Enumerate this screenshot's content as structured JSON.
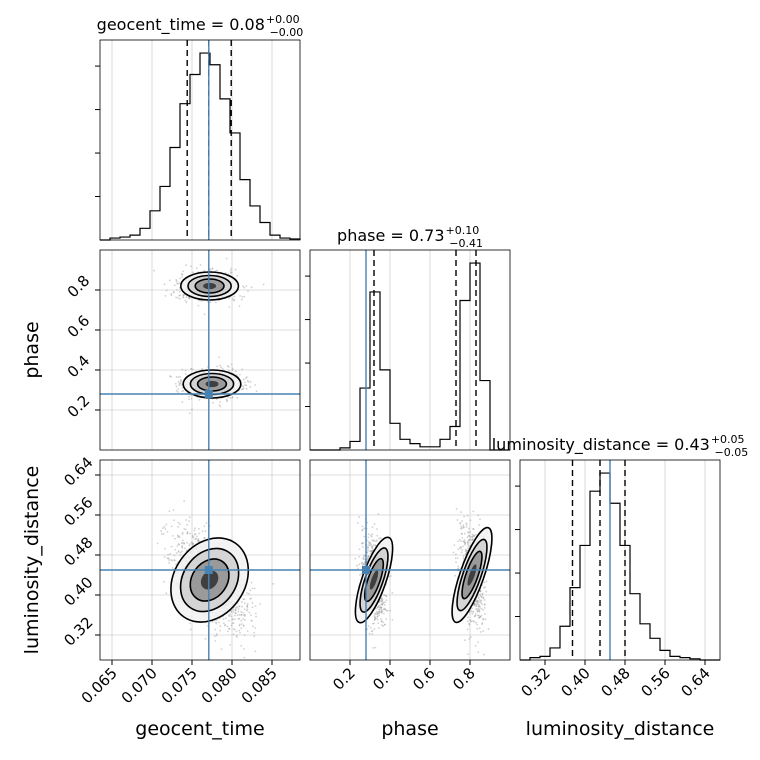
{
  "chart_data": {
    "type": "corner",
    "parameters": [
      "geocent_time",
      "phase",
      "luminosity_distance"
    ],
    "axis_labels": {
      "geocent_time": "geocent_time",
      "phase": "phase",
      "luminosity_distance": "luminosity_distance"
    },
    "titles": [
      {
        "param": "geocent_time",
        "text": "geocent_time = 0.08",
        "upper": "+0.00",
        "lower": "−0.00"
      },
      {
        "param": "phase",
        "text": "phase = 0.73",
        "upper": "+0.10",
        "lower": "−0.41"
      },
      {
        "param": "luminosity_distance",
        "text": "luminosity_distance = 0.43",
        "upper": "+0.05",
        "lower": "−0.05"
      }
    ],
    "ranges": {
      "geocent_time": [
        0.0635,
        0.0885
      ],
      "phase": [
        0.0,
        1.0
      ],
      "luminosity_distance": [
        0.27,
        0.67
      ]
    },
    "ticks": {
      "geocent_time": {
        "values": [
          0.065,
          0.07,
          0.075,
          0.08,
          0.085
        ],
        "labels": [
          "0.065",
          "0.070",
          "0.075",
          "0.080",
          "0.085"
        ]
      },
      "phase": {
        "values": [
          0.2,
          0.4,
          0.6,
          0.8
        ],
        "labels": [
          "0.2",
          "0.4",
          "0.6",
          "0.8"
        ]
      },
      "luminosity_distance": {
        "values": [
          0.32,
          0.4,
          0.48,
          0.56,
          0.64
        ],
        "labels": [
          "0.32",
          "0.40",
          "0.48",
          "0.56",
          "0.64"
        ]
      }
    },
    "truths": {
      "geocent_time": 0.0771,
      "phase": 0.28,
      "luminosity_distance": 0.45
    },
    "quantiles": {
      "geocent_time": [
        0.0744,
        0.0771,
        0.0799
      ],
      "phase": [
        0.32,
        0.73,
        0.83
      ],
      "luminosity_distance": [
        0.375,
        0.43,
        0.48
      ]
    },
    "histograms": {
      "geocent_time": {
        "edges": [
          0.0635,
          0.06475,
          0.066,
          0.06725,
          0.0685,
          0.06975,
          0.071,
          0.07225,
          0.0735,
          0.07475,
          0.076,
          0.07725,
          0.0785,
          0.07975,
          0.081,
          0.08225,
          0.0835,
          0.08475,
          0.086,
          0.08725,
          0.0885
        ],
        "counts": [
          0,
          2,
          3,
          5,
          12,
          30,
          55,
          95,
          140,
          170,
          192,
          180,
          145,
          110,
          62,
          35,
          18,
          5,
          2,
          1
        ]
      },
      "phase": {
        "edges": [
          0.0,
          0.05,
          0.1,
          0.15,
          0.2,
          0.25,
          0.3,
          0.35,
          0.4,
          0.45,
          0.5,
          0.55,
          0.6,
          0.65,
          0.7,
          0.75,
          0.8,
          0.85,
          0.9,
          0.95,
          1.0
        ],
        "counts": [
          0,
          0,
          0,
          2,
          8,
          58,
          148,
          75,
          25,
          10,
          6,
          3,
          3,
          10,
          22,
          140,
          175,
          65,
          0,
          0
        ]
      },
      "luminosity_distance": {
        "edges": [
          0.27,
          0.29,
          0.31,
          0.33,
          0.35,
          0.37,
          0.39,
          0.41,
          0.43,
          0.45,
          0.47,
          0.49,
          0.51,
          0.53,
          0.55,
          0.57,
          0.59,
          0.61,
          0.63,
          0.65,
          0.67
        ],
        "counts": [
          0,
          2,
          3,
          10,
          28,
          60,
          95,
          140,
          155,
          130,
          95,
          55,
          30,
          18,
          8,
          3,
          2,
          1,
          0,
          0
        ]
      }
    },
    "density_modes": [
      {
        "x": "geocent_time",
        "y": "phase",
        "centers": [
          {
            "x": 0.0772,
            "y": 0.82,
            "sx": 0.0018,
            "sy": 0.035,
            "rho": 0.0,
            "w": 0.5
          },
          {
            "x": 0.0775,
            "y": 0.33,
            "sx": 0.0018,
            "sy": 0.035,
            "rho": 0.0,
            "w": 0.5
          }
        ]
      },
      {
        "x": "geocent_time",
        "y": "luminosity_distance",
        "centers": [
          {
            "x": 0.0772,
            "y": 0.43,
            "sx": 0.0022,
            "sy": 0.045,
            "rho": -0.55,
            "w": 1.0
          }
        ]
      },
      {
        "x": "phase",
        "y": "luminosity_distance",
        "centers": [
          {
            "x": 0.32,
            "y": 0.43,
            "sx": 0.03,
            "sy": 0.045,
            "rho": -0.3,
            "w": 0.5
          },
          {
            "x": 0.81,
            "y": 0.44,
            "sx": 0.03,
            "sy": 0.05,
            "rho": -0.3,
            "w": 0.5
          }
        ]
      }
    ],
    "grid": true,
    "colors": {
      "truth": "#4682b4",
      "hist": "#000000",
      "points": "#9a9a9a"
    }
  }
}
